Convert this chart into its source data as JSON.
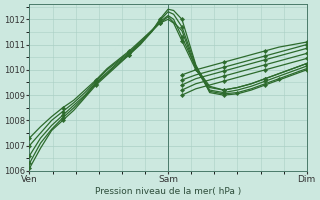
{
  "xlabel": "Pression niveau de la mer( hPa )",
  "bg_color": "#cce8df",
  "grid_color": "#aacfc5",
  "line_color": "#2d6b2d",
  "marker_color": "#2d6b2d",
  "ymin": 1006.0,
  "ymax": 1012.6,
  "yticks": [
    1006,
    1007,
    1008,
    1009,
    1010,
    1011,
    1012
  ],
  "xtick_labels": [
    "Ven",
    "Sam",
    "Dim"
  ],
  "xtick_positions": [
    0,
    0.5,
    1.0
  ],
  "vline_positions": [
    0,
    0.5,
    1.0
  ],
  "series": [
    {
      "x": [
        0.0,
        0.04,
        0.08,
        0.12,
        0.16,
        0.2,
        0.24,
        0.28,
        0.32,
        0.36,
        0.4,
        0.44,
        0.47,
        0.5,
        0.52,
        0.55,
        0.6,
        0.65,
        0.7,
        0.75,
        0.8,
        0.85,
        0.9,
        0.95,
        1.0
      ],
      "y": [
        1006.1,
        1006.9,
        1007.6,
        1008.0,
        1008.4,
        1008.9,
        1009.4,
        1009.8,
        1010.2,
        1010.6,
        1011.0,
        1011.5,
        1012.0,
        1012.4,
        1012.35,
        1012.0,
        1010.2,
        1009.1,
        1009.0,
        1009.05,
        1009.2,
        1009.4,
        1009.6,
        1009.8,
        1010.0
      ]
    },
    {
      "x": [
        0.0,
        0.04,
        0.08,
        0.12,
        0.16,
        0.2,
        0.24,
        0.28,
        0.32,
        0.36,
        0.4,
        0.44,
        0.47,
        0.5,
        0.52,
        0.55,
        0.6,
        0.65,
        0.7,
        0.75,
        0.8,
        0.85,
        0.9,
        0.95,
        1.0
      ],
      "y": [
        1006.6,
        1007.3,
        1007.8,
        1008.2,
        1008.6,
        1009.0,
        1009.5,
        1009.9,
        1010.3,
        1010.65,
        1011.05,
        1011.5,
        1011.95,
        1012.3,
        1012.2,
        1011.7,
        1010.15,
        1009.2,
        1009.1,
        1009.2,
        1009.35,
        1009.55,
        1009.75,
        1009.95,
        1010.15
      ]
    },
    {
      "x": [
        0.0,
        0.04,
        0.08,
        0.12,
        0.16,
        0.2,
        0.24,
        0.28,
        0.32,
        0.36,
        0.4,
        0.44,
        0.47,
        0.5,
        0.52,
        0.55,
        0.6,
        0.65,
        0.7,
        0.75,
        0.8,
        0.85,
        0.9,
        0.95,
        1.0
      ],
      "y": [
        1007.0,
        1007.5,
        1008.0,
        1008.35,
        1008.7,
        1009.1,
        1009.55,
        1010.0,
        1010.35,
        1010.7,
        1011.1,
        1011.55,
        1011.9,
        1012.15,
        1012.0,
        1011.3,
        1010.1,
        1009.35,
        1009.2,
        1009.3,
        1009.45,
        1009.65,
        1009.85,
        1010.05,
        1010.25
      ]
    },
    {
      "x": [
        0.0,
        0.04,
        0.08,
        0.12,
        0.16,
        0.2,
        0.24,
        0.28,
        0.32,
        0.36,
        0.4,
        0.44,
        0.47,
        0.5,
        0.52,
        0.55,
        0.6,
        0.65,
        0.7,
        0.75,
        0.8,
        0.85,
        0.9,
        0.95,
        1.0
      ],
      "y": [
        1007.3,
        1007.75,
        1008.15,
        1008.5,
        1008.8,
        1009.2,
        1009.6,
        1010.05,
        1010.4,
        1010.75,
        1011.15,
        1011.55,
        1011.85,
        1012.0,
        1011.85,
        1011.15,
        1010.0,
        1009.3,
        1009.2,
        1009.3,
        1009.45,
        1009.65,
        1009.85,
        1010.05,
        1010.25
      ]
    },
    {
      "x": [
        0.0,
        0.04,
        0.08,
        0.12,
        0.16,
        0.2,
        0.24,
        0.28,
        0.32,
        0.36,
        0.4,
        0.44,
        0.47,
        0.5,
        0.55,
        0.6,
        0.65,
        0.7,
        0.75,
        0.8,
        0.85,
        0.9,
        0.95,
        1.0
      ],
      "y": [
        1006.3,
        1007.1,
        1007.65,
        1008.1,
        1008.5,
        1008.95,
        1009.45,
        1009.85,
        1010.25,
        1010.6,
        1011.05,
        1011.5,
        1011.85,
        1012.1,
        1011.55,
        1010.05,
        1009.15,
        1009.05,
        1009.1,
        1009.25,
        1009.45,
        1009.65,
        1009.85,
        1010.05
      ]
    }
  ],
  "series2": [
    {
      "x": [
        0.55,
        0.6,
        0.65,
        0.7,
        0.75,
        0.8,
        0.85,
        0.9,
        0.95,
        1.0
      ],
      "y": [
        1009.8,
        1010.0,
        1010.15,
        1010.3,
        1010.45,
        1010.6,
        1010.75,
        1010.9,
        1011.0,
        1011.1
      ]
    },
    {
      "x": [
        0.55,
        0.6,
        0.65,
        0.7,
        0.75,
        0.8,
        0.85,
        0.9,
        0.95,
        1.0
      ],
      "y": [
        1009.6,
        1009.8,
        1009.95,
        1010.1,
        1010.25,
        1010.4,
        1010.55,
        1010.7,
        1010.85,
        1011.0
      ]
    },
    {
      "x": [
        0.55,
        0.6,
        0.65,
        0.7,
        0.75,
        0.8,
        0.85,
        0.9,
        0.95,
        1.0
      ],
      "y": [
        1009.4,
        1009.65,
        1009.8,
        1009.95,
        1010.1,
        1010.25,
        1010.4,
        1010.55,
        1010.7,
        1010.85
      ]
    },
    {
      "x": [
        0.55,
        0.6,
        0.65,
        0.7,
        0.75,
        0.8,
        0.85,
        0.9,
        0.95,
        1.0
      ],
      "y": [
        1009.2,
        1009.45,
        1009.6,
        1009.75,
        1009.9,
        1010.05,
        1010.2,
        1010.35,
        1010.5,
        1010.65
      ]
    },
    {
      "x": [
        0.55,
        0.6,
        0.65,
        0.7,
        0.75,
        0.8,
        0.85,
        0.9,
        0.95,
        1.0
      ],
      "y": [
        1009.0,
        1009.25,
        1009.4,
        1009.55,
        1009.7,
        1009.85,
        1010.0,
        1010.15,
        1010.3,
        1010.45
      ]
    }
  ]
}
